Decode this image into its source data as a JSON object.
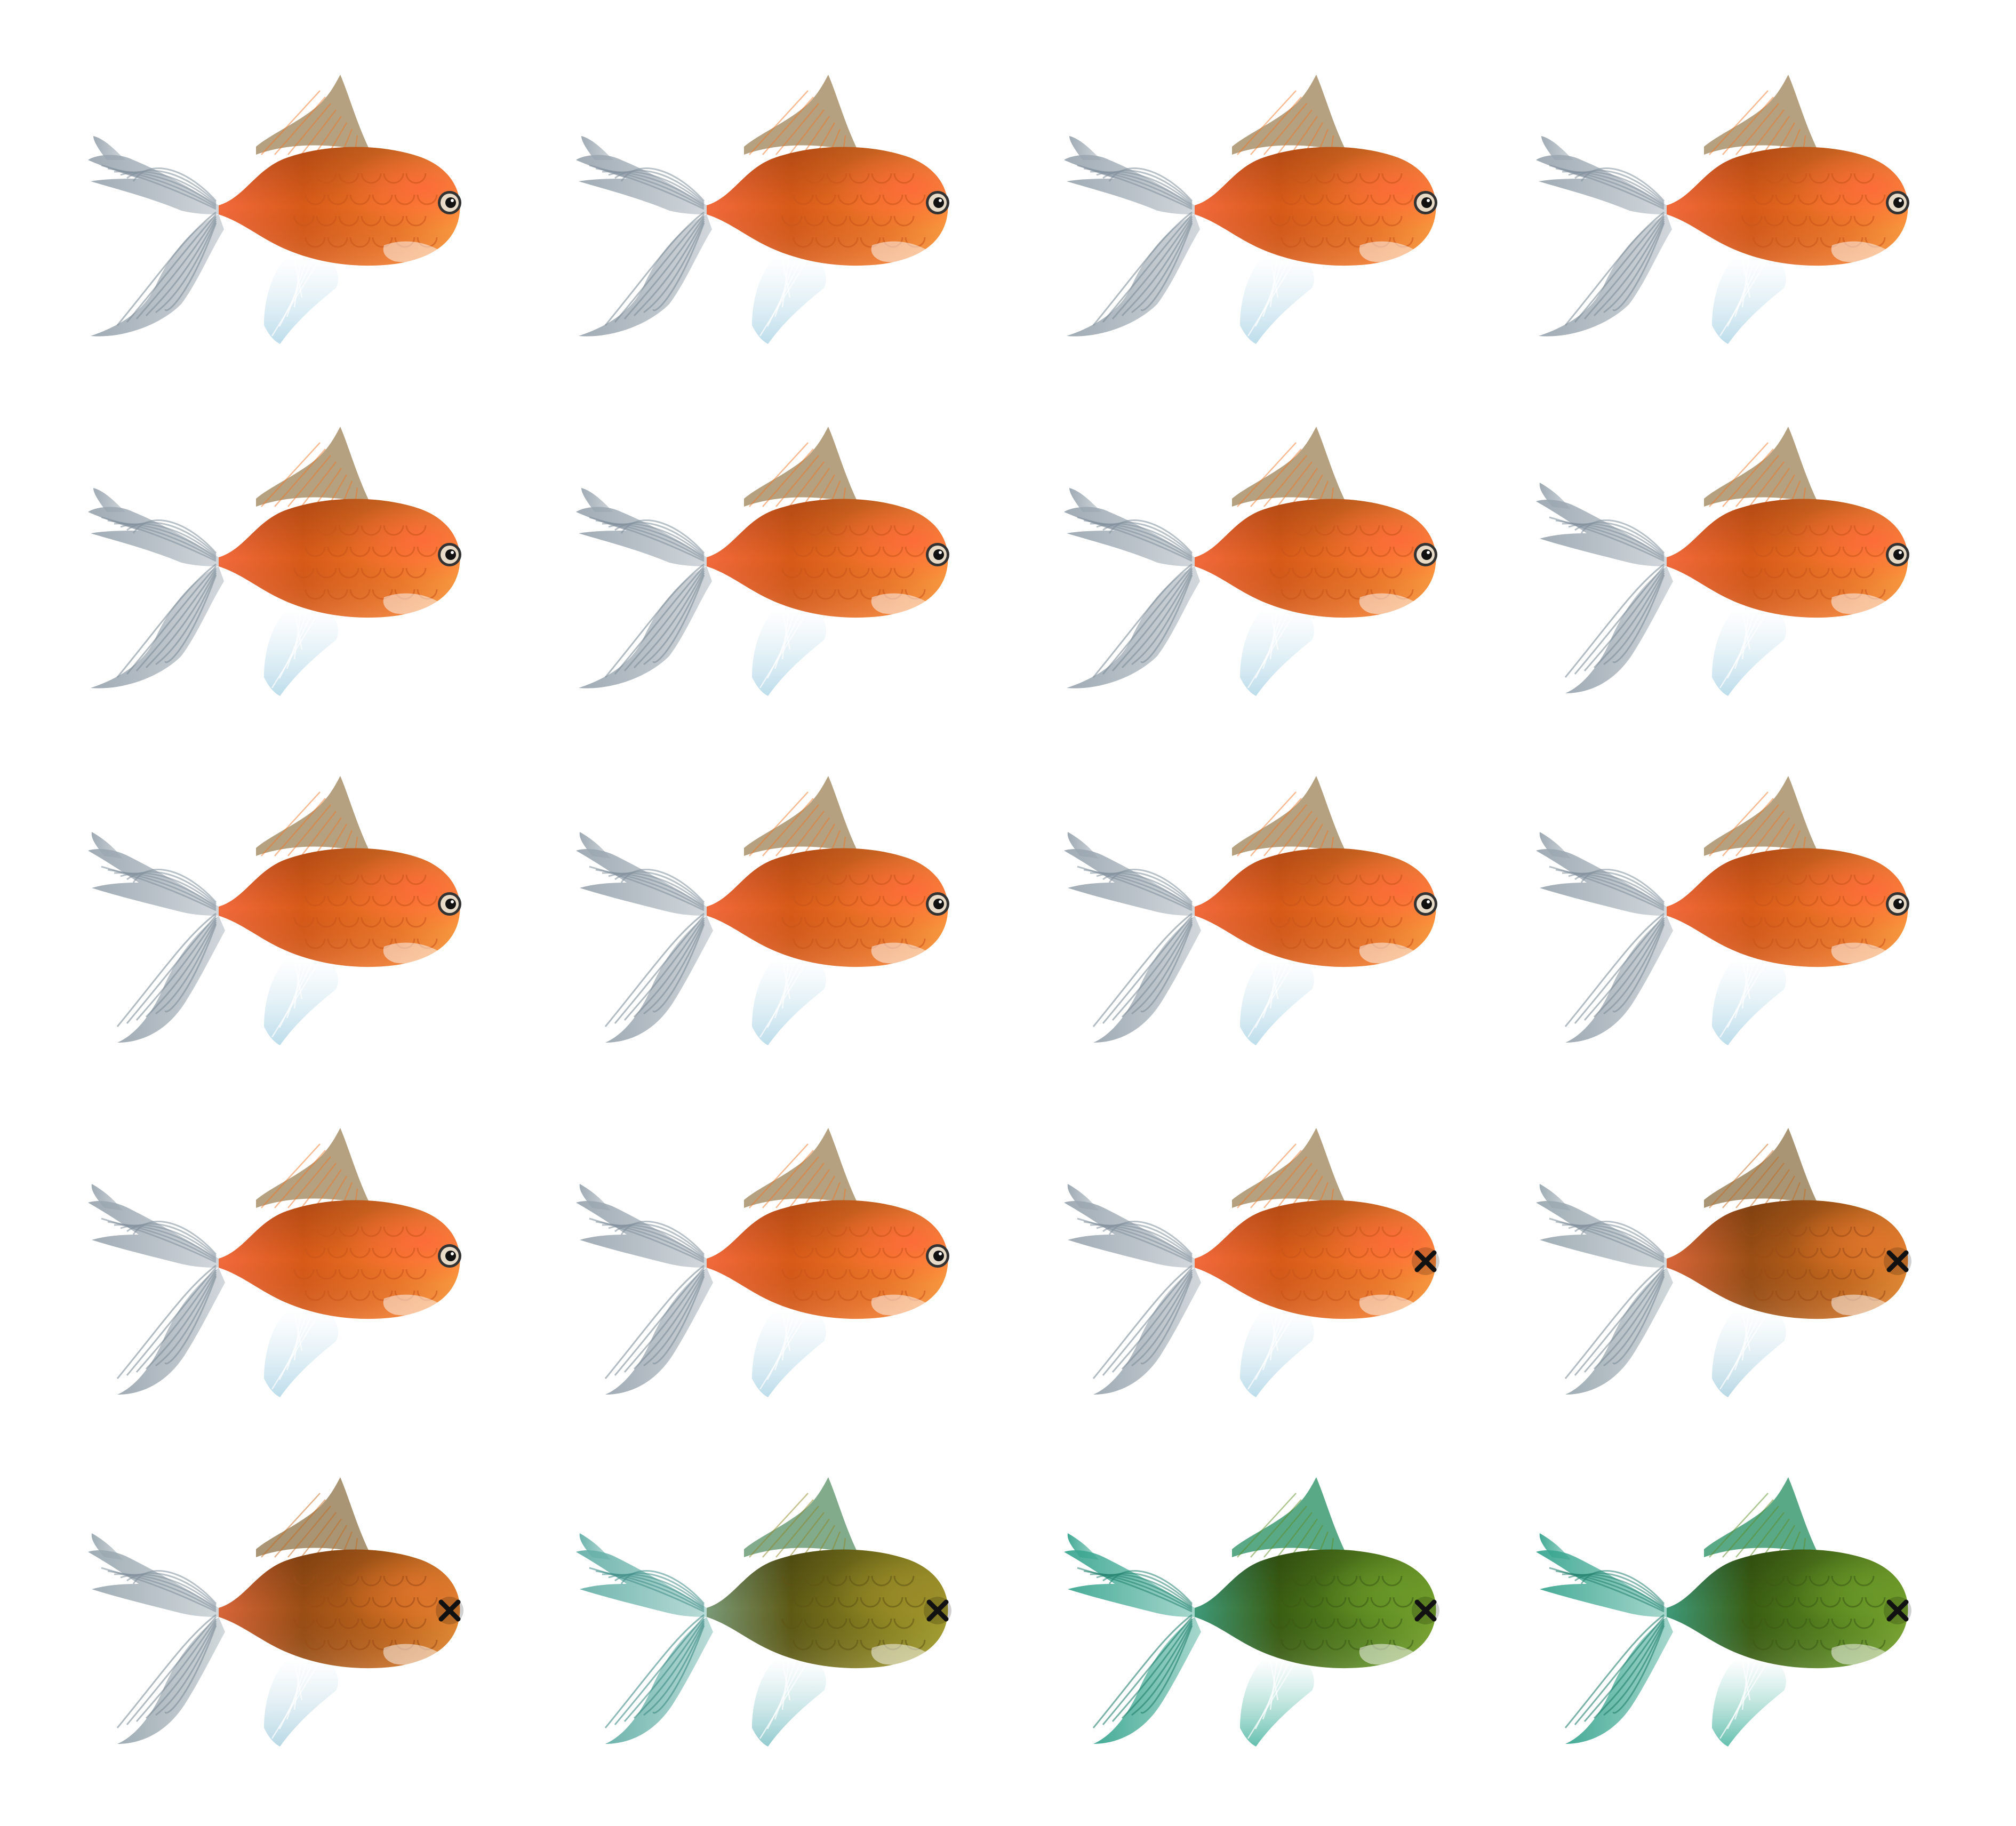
{
  "sheet": {
    "background": "#ffffff",
    "columns": 4,
    "rows": 5
  },
  "palettes": {
    "healthy": {
      "body_light": "#ff9a3d",
      "body_mid": "#f07828",
      "body_dark": "#d85a18",
      "head": "#ff6a3a",
      "scale": "#c8541a",
      "tail_base": "#f26a3c",
      "fin": "#9aa6b0",
      "fin_vein": "#7f8e9a",
      "dorsal": "#a8906a",
      "pelvic": "#b9dbea"
    },
    "sick_dark": {
      "body_light": "#e58a32",
      "body_mid": "#c86a1e",
      "body_dark": "#9a4e14",
      "head": "#e0742c",
      "scale": "#9a4a16",
      "tail_base": "#d8663a",
      "fin": "#9aa8b0",
      "fin_vein": "#7f8e9a",
      "dorsal": "#9a825c",
      "pelvic": "#b4d6e4"
    },
    "sick_olive": {
      "body_light": "#a6a030",
      "body_mid": "#8e8622",
      "body_dark": "#5e5a14",
      "head": "#9a8a28",
      "scale": "#5e5414",
      "tail_base": "#7a9a78",
      "fin": "#66b0a8",
      "fin_vein": "#3f8c86",
      "dorsal": "#6c9c78",
      "pelvic": "#8cc8cc"
    },
    "dead_green": {
      "body_light": "#7aa630",
      "body_mid": "#5e8c22",
      "body_dark": "#3a5e12",
      "head": "#6a9828",
      "scale": "#3c5a14",
      "tail_base": "#3e9a7a",
      "fin": "#3aa690",
      "fin_vein": "#23806e",
      "dorsal": "#3c9a72",
      "pelvic": "#5cbcaa"
    }
  },
  "sprites": [
    {
      "row": 0,
      "col": 0,
      "state": "healthy",
      "palette": "healthy",
      "eye": "open",
      "frame": "tail-up"
    },
    {
      "row": 0,
      "col": 1,
      "state": "healthy",
      "palette": "healthy",
      "eye": "open",
      "frame": "tail-up"
    },
    {
      "row": 0,
      "col": 2,
      "state": "healthy",
      "palette": "healthy",
      "eye": "open",
      "frame": "tail-up"
    },
    {
      "row": 0,
      "col": 3,
      "state": "healthy",
      "palette": "healthy",
      "eye": "open",
      "frame": "tail-up"
    },
    {
      "row": 1,
      "col": 0,
      "state": "healthy",
      "palette": "healthy",
      "eye": "open",
      "frame": "tail-up"
    },
    {
      "row": 1,
      "col": 1,
      "state": "healthy",
      "palette": "healthy",
      "eye": "open",
      "frame": "tail-up"
    },
    {
      "row": 1,
      "col": 2,
      "state": "healthy",
      "palette": "healthy",
      "eye": "open",
      "frame": "tail-up"
    },
    {
      "row": 1,
      "col": 3,
      "state": "healthy",
      "palette": "healthy",
      "eye": "open",
      "frame": "tail-mid"
    },
    {
      "row": 2,
      "col": 0,
      "state": "healthy",
      "palette": "healthy",
      "eye": "open",
      "frame": "tail-mid"
    },
    {
      "row": 2,
      "col": 1,
      "state": "healthy",
      "palette": "healthy",
      "eye": "open",
      "frame": "tail-mid"
    },
    {
      "row": 2,
      "col": 2,
      "state": "healthy",
      "palette": "healthy",
      "eye": "open",
      "frame": "tail-mid"
    },
    {
      "row": 2,
      "col": 3,
      "state": "healthy",
      "palette": "healthy",
      "eye": "open",
      "frame": "tail-mid"
    },
    {
      "row": 3,
      "col": 0,
      "state": "healthy",
      "palette": "healthy",
      "eye": "open",
      "frame": "tail-mid"
    },
    {
      "row": 3,
      "col": 1,
      "state": "healthy",
      "palette": "healthy",
      "eye": "open",
      "frame": "tail-mid"
    },
    {
      "row": 3,
      "col": 2,
      "state": "dying",
      "palette": "healthy",
      "eye": "x",
      "frame": "tail-mid"
    },
    {
      "row": 3,
      "col": 3,
      "state": "dying",
      "palette": "sick_dark",
      "eye": "x",
      "frame": "tail-mid"
    },
    {
      "row": 4,
      "col": 0,
      "state": "dying",
      "palette": "sick_dark",
      "eye": "x",
      "frame": "tail-mid"
    },
    {
      "row": 4,
      "col": 1,
      "state": "decaying",
      "palette": "sick_olive",
      "eye": "x",
      "frame": "tail-mid"
    },
    {
      "row": 4,
      "col": 2,
      "state": "dead",
      "palette": "dead_green",
      "eye": "x",
      "frame": "tail-mid"
    },
    {
      "row": 4,
      "col": 3,
      "state": "dead",
      "palette": "dead_green",
      "eye": "x",
      "frame": "tail-mid"
    }
  ]
}
